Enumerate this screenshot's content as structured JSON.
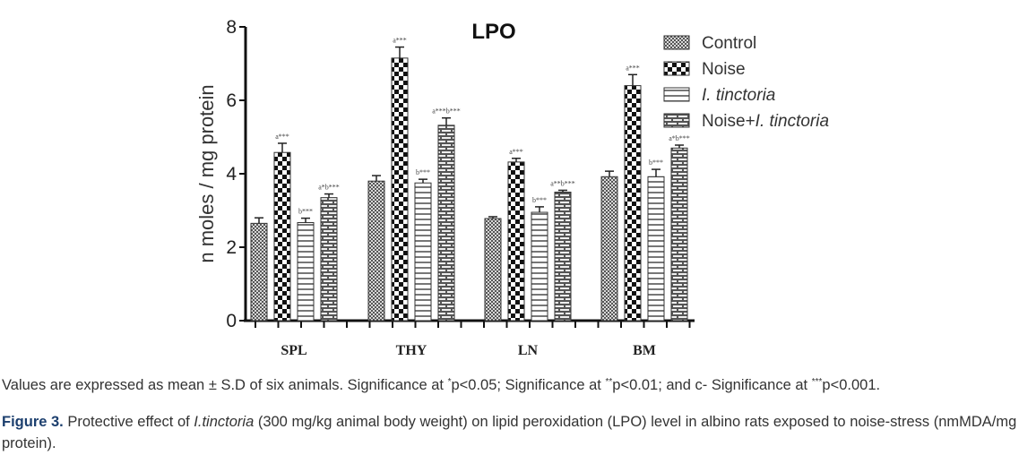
{
  "chart_data": {
    "type": "bar",
    "title": "LPO",
    "xlabel": "",
    "ylabel": "n moles / mg protein",
    "ylim": [
      0,
      8
    ],
    "yticks": [
      "0",
      "2",
      "4",
      "6",
      "8"
    ],
    "grid": false,
    "legend_position": "top-right",
    "categories": [
      "SPL",
      "THY",
      "LN",
      "BM"
    ],
    "series": [
      {
        "name": "Control",
        "italic_part": "",
        "pattern": "fine-check",
        "values": [
          2.65,
          3.8,
          2.78,
          3.92
        ],
        "errors": [
          0.15,
          0.15,
          0.05,
          0.15
        ],
        "annotations": [
          "",
          "",
          "",
          ""
        ]
      },
      {
        "name": "Noise",
        "italic_part": "",
        "pattern": "coarse-check",
        "values": [
          4.58,
          7.15,
          4.32,
          6.4
        ],
        "errors": [
          0.25,
          0.3,
          0.1,
          0.3
        ],
        "annotations": [
          "a***",
          "a***",
          "a***",
          "a***"
        ]
      },
      {
        "name": "I. tinctoria",
        "italic_part": "I. tinctoria",
        "pattern": "horizontal-lines",
        "values": [
          2.67,
          3.75,
          2.95,
          3.92
        ],
        "errors": [
          0.12,
          0.1,
          0.15,
          0.2
        ],
        "annotations": [
          "b***",
          "b***",
          "b***",
          "b***"
        ]
      },
      {
        "name": "Noise+I. tinctoria",
        "italic_part": "I. tinctoria",
        "pattern": "brick",
        "values": [
          3.35,
          5.32,
          3.5,
          4.7
        ],
        "errors": [
          0.1,
          0.2,
          0.05,
          0.08
        ],
        "annotations": [
          "a*b***",
          "a***b***",
          "a**b***",
          "a*b***"
        ]
      }
    ]
  },
  "note": {
    "text1": "Values are expressed as mean ± S.D of six animals. Significance at ",
    "sup1": "*",
    "text2": "p<0.05; Significance at ",
    "sup2": "**",
    "text3": "p<0.01; and c- Significance at ",
    "sup3": "***",
    "text4": "p<0.001."
  },
  "caption": {
    "label": "Figure 3.",
    "text1": " Protective effect of ",
    "italic": "I.tinctoria",
    "text2": " (300 mg/kg animal body weight) on lipid peroxidation (LPO) level in albino rats exposed to noise-stress (nmMDA/mg protein)."
  }
}
